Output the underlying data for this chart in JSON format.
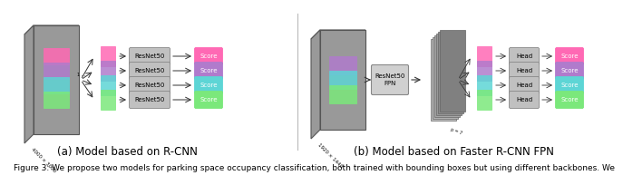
{
  "subfig_a_label": "(a) Model based on R-CNN",
  "subfig_b_label": "(b) Model based on Faster R-CNN FPN",
  "bg_color": "#ffffff",
  "text_color": "#000000",
  "subfig_label_fontsize": 8.5,
  "caption_fontsize": 6.5,
  "fig_width": 6.4,
  "fig_height": 1.84,
  "colors": {
    "pink": "#ff69b4",
    "purple": "#b07bcc",
    "cyan": "#5dd5d5",
    "green": "#7be87b",
    "gray_box": "#bbbbbb",
    "gray_dark": "#888888",
    "score_pink": "#ff69b4",
    "score_purple": "#b07bcc",
    "score_cyan": "#5dd5d5",
    "score_green": "#7be87b"
  },
  "caption": "Figure 3: We propose two models for parking space occupancy classification, both trained with bounding boxes but using different backbones. We"
}
